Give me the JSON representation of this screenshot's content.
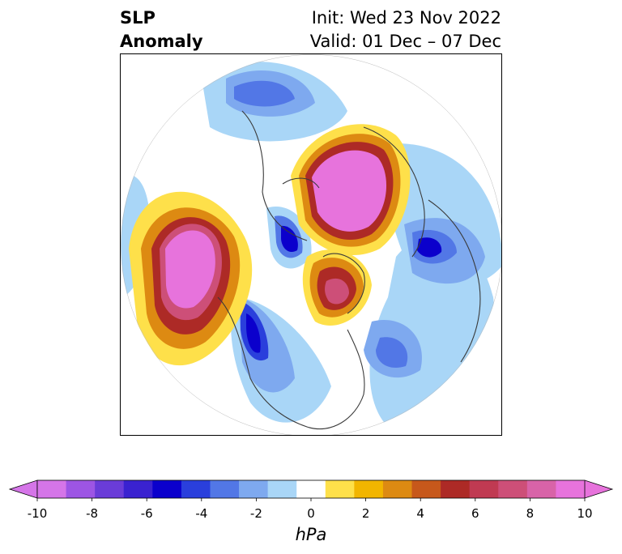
{
  "header": {
    "title_line1": "SLP",
    "title_line2": "Anomaly",
    "init_text": "Init: Wed 23 Nov 2022",
    "valid_text": "Valid: 01 Dec – 07 Dec"
  },
  "map": {
    "type": "polar-stereographic-anomaly-map",
    "variable": "SLP Anomaly"
  },
  "colorbar": {
    "units": "hPa",
    "min": -10,
    "max": 10,
    "extend": "both",
    "ticks": [
      "-10",
      "-8",
      "-6",
      "-4",
      "-2",
      "0",
      "2",
      "4",
      "6",
      "8",
      "10"
    ],
    "colors": [
      "#d575e8",
      "#9d55e4",
      "#6a3cd8",
      "#3a22d0",
      "#0b00cc",
      "#2a3fdc",
      "#5277e6",
      "#7ea9ef",
      "#a9d6f7",
      "#ffffff",
      "#fee04a",
      "#f2b500",
      "#dd8a12",
      "#c7581b",
      "#ad2a26",
      "#c03a52",
      "#cd4f78",
      "#d863a8",
      "#e773dc"
    ]
  }
}
